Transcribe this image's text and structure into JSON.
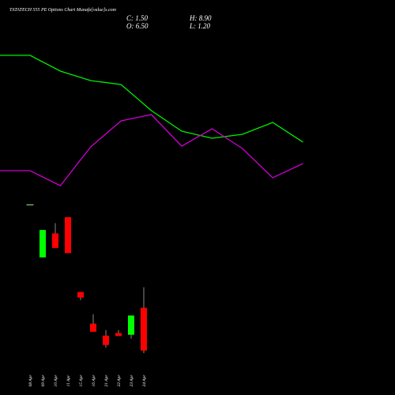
{
  "chart_data": {
    "type": "candlestick",
    "title": "TATATECH 555 PE Options Chart Munafa[value]s.com",
    "summary": [
      "C: 1.50",
      "H: 8.90",
      "O: 6.50",
      "L: 1.20"
    ],
    "categories": [
      "08 Apr",
      "09 Apr",
      "10 Apr",
      "11 Apr",
      "15 Apr",
      "16 Apr",
      "21 Apr",
      "22 Apr",
      "23 Apr",
      "24 Apr"
    ],
    "open": [
      18.6,
      12.4,
      15.2,
      17.1,
      8.35,
      4.65,
      3.25,
      3.55,
      3.35,
      6.5
    ],
    "high": [
      18.6,
      15.6,
      16.4,
      17.1,
      8.35,
      5.75,
      3.9,
      3.9,
      5.6,
      8.9
    ],
    "low": [
      18.6,
      12.4,
      13.5,
      12.9,
      7.4,
      3.7,
      1.85,
      3.2,
      2.9,
      1.2
    ],
    "close": [
      18.6,
      15.6,
      13.5,
      12.9,
      7.7,
      3.7,
      2.15,
      3.2,
      5.6,
      1.5
    ],
    "up_color": "#00ff00",
    "down_color": "#ff0000",
    "ylim": [
      0,
      19.4
    ],
    "y2lim": [
      0,
      100
    ],
    "series": [
      {
        "name": "overlay-1",
        "color": "#00ee00",
        "axis": "y2",
        "values": [
          72,
          64,
          59.2,
          57.2,
          44,
          33.6,
          30,
          32,
          38,
          28
        ]
      },
      {
        "name": "overlay-2",
        "color": "#cc00cc",
        "axis": "y2",
        "values": [
          13.6,
          6,
          25.6,
          38.8,
          42,
          26,
          34.8,
          24.8,
          10,
          17.2
        ]
      }
    ]
  }
}
